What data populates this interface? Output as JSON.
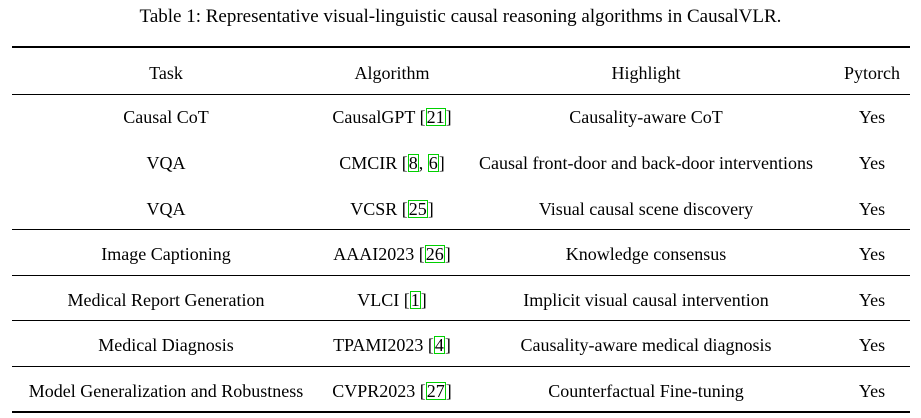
{
  "caption": "Table 1: Representative visual-linguistic causal reasoning algorithms in CausalVLR.",
  "header": {
    "task": "Task",
    "algorithm": "Algorithm",
    "highlight": "Highlight",
    "pytorch": "Pytorch"
  },
  "rows": [
    {
      "task": "Causal CoT",
      "algorithm": "CausalGPT",
      "cites": [
        "21"
      ],
      "highlight": "Causality-aware CoT",
      "pytorch": "Yes"
    },
    {
      "task": "VQA",
      "algorithm": "CMCIR",
      "cites": [
        "8",
        "6"
      ],
      "highlight": "Causal front-door and back-door interventions",
      "pytorch": "Yes"
    },
    {
      "task": "VQA",
      "algorithm": "VCSR",
      "cites": [
        "25"
      ],
      "highlight": "Visual causal scene discovery",
      "pytorch": "Yes"
    },
    {
      "task": "Image Captioning",
      "algorithm": "AAAI2023",
      "cites": [
        "26"
      ],
      "highlight": "Knowledge consensus",
      "pytorch": "Yes"
    },
    {
      "task": "Medical Report Generation",
      "algorithm": "VLCI",
      "cites": [
        "1"
      ],
      "highlight": "Implicit visual causal intervention",
      "pytorch": "Yes"
    },
    {
      "task": "Medical Diagnosis",
      "algorithm": "TPAMI2023",
      "cites": [
        "4"
      ],
      "highlight": "Causality-aware medical diagnosis",
      "pytorch": "Yes"
    },
    {
      "task": "Model Generalization and Robustness",
      "algorithm": "CVPR2023",
      "cites": [
        "27"
      ],
      "highlight": "Counterfactual Fine-tuning",
      "pytorch": "Yes"
    }
  ]
}
